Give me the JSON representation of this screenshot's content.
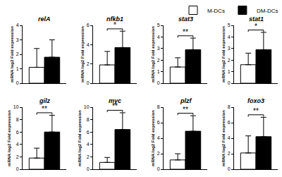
{
  "chart_data": [
    {
      "type": "bar",
      "title": "relA",
      "y_label": "mRNA log2 Fold expression",
      "categories": [
        null
      ],
      "series": [
        {
          "name": "M-DCs",
          "color": "#ffffff",
          "values": [
            1.1
          ],
          "errors": [
            1.3
          ]
        },
        {
          "name": "DM-DCs",
          "color": "#000000",
          "values": [
            1.8
          ],
          "errors": [
            1.2
          ]
        }
      ],
      "ylim": [
        0,
        4
      ],
      "yticks": [
        0,
        1,
        2,
        3,
        4
      ],
      "tick_labels": "y"
    },
    {
      "type": "bar",
      "title": "nfkb1",
      "y_label": "mRNA log2 Fold expression",
      "categories": [
        null
      ],
      "series": [
        {
          "name": "M-DCs",
          "color": "#ffffff",
          "values": [
            1.9
          ],
          "errors": [
            1.4
          ]
        },
        {
          "name": "DM-DCs",
          "color": "#000000",
          "values": [
            3.7
          ],
          "errors": [
            1.7
          ]
        }
      ],
      "ylim": [
        0,
        6
      ],
      "yticks": [
        0,
        2,
        4,
        6
      ],
      "tick_labels": "y",
      "annotation": "*"
    },
    {
      "type": "bar",
      "title": "stat3",
      "y_label": "mRNA log2 Fold expression",
      "categories": [
        null
      ],
      "series": [
        {
          "name": "M-DCs",
          "color": "#ffffff",
          "values": [
            1.4
          ],
          "errors": [
            0.8
          ]
        },
        {
          "name": "DM-DCs",
          "color": "#000000",
          "values": [
            2.9
          ],
          "errors": [
            1.0
          ]
        }
      ],
      "ylim": [
        0,
        5
      ],
      "yticks": [
        0,
        1,
        2,
        3,
        4,
        5
      ],
      "tick_labels": "y",
      "annotation": "**"
    },
    {
      "type": "bar",
      "title": "stat1",
      "y_label": "mRNA log2 Fold expression",
      "categories": [
        null
      ],
      "series": [
        {
          "name": "M-DCs",
          "color": "#ffffff",
          "values": [
            1.6
          ],
          "errors": [
            1.0
          ]
        },
        {
          "name": "DM-DCs",
          "color": "#000000",
          "values": [
            2.9
          ],
          "errors": [
            1.5
          ]
        }
      ],
      "ylim": [
        0,
        5
      ],
      "yticks": [
        0,
        1,
        2,
        3,
        4,
        5
      ],
      "tick_labels": "y",
      "annotation": "*",
      "legend": "top right"
    },
    {
      "type": "bar",
      "title": "gilz",
      "y_label": "mRNA log2 Fold expression",
      "categories": [
        null
      ],
      "series": [
        {
          "name": "M-DCs",
          "color": "#ffffff",
          "values": [
            1.8
          ],
          "errors": [
            1.6
          ]
        },
        {
          "name": "DM-DCs",
          "color": "#000000",
          "values": [
            6.0
          ],
          "errors": [
            2.7
          ]
        }
      ],
      "ylim": [
        0,
        10
      ],
      "yticks": [
        0,
        2,
        4,
        6,
        8,
        10
      ],
      "tick_labels": "y",
      "annotation": "**"
    },
    {
      "type": "bar",
      "title": "myc",
      "y_label": "mRNA log2 Fold expression",
      "categories": [
        null
      ],
      "series": [
        {
          "name": "M-DCs",
          "color": "#ffffff",
          "values": [
            1.1
          ],
          "errors": [
            0.8
          ]
        },
        {
          "name": "DM-DCs",
          "color": "#000000",
          "values": [
            6.4
          ],
          "errors": [
            2.7
          ]
        }
      ],
      "ylim": [
        0,
        10
      ],
      "yticks": [
        0,
        2,
        4,
        6,
        8,
        10
      ],
      "tick_labels": "y",
      "annotation": "**"
    },
    {
      "type": "bar",
      "title": "plzf",
      "y_label": "mRNA log2 Fold expression",
      "categories": [
        null
      ],
      "series": [
        {
          "name": "M-DCs",
          "color": "#ffffff",
          "values": [
            1.2
          ],
          "errors": [
            0.8
          ]
        },
        {
          "name": "DM-DCs",
          "color": "#000000",
          "values": [
            4.9
          ],
          "errors": [
            2.0
          ]
        }
      ],
      "ylim": [
        0,
        8
      ],
      "yticks": [
        0,
        2,
        4,
        6,
        8
      ],
      "tick_labels": "y",
      "annotation": "**"
    },
    {
      "type": "bar",
      "title": "foxo3",
      "y_label": "mRNA log2 Fold expression",
      "categories": [
        null
      ],
      "series": [
        {
          "name": "M-DCs",
          "color": "#ffffff",
          "values": [
            2.1
          ],
          "errors": [
            2.2
          ]
        },
        {
          "name": "DM-DCs",
          "color": "#000000",
          "values": [
            4.2
          ],
          "errors": [
            2.5
          ]
        }
      ],
      "ylim": [
        0,
        8
      ],
      "yticks": [
        0,
        2,
        4,
        6,
        8
      ],
      "tick_labels": "y",
      "annotation": "**"
    }
  ]
}
